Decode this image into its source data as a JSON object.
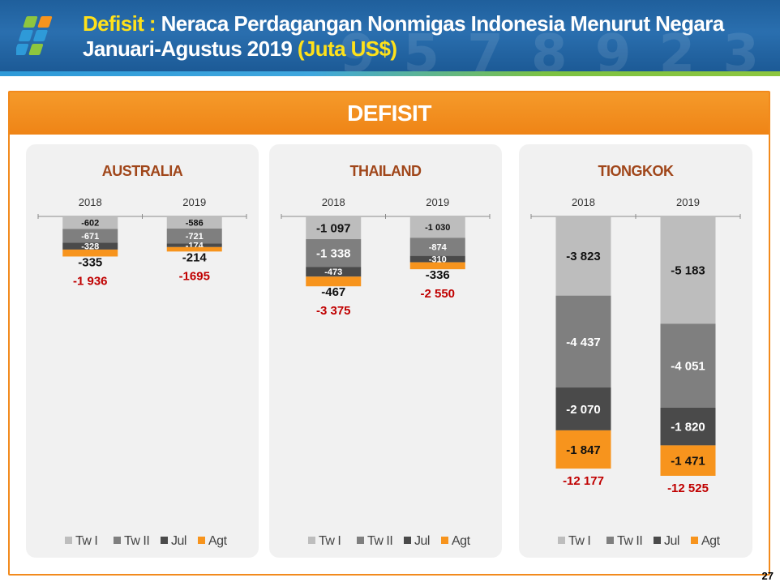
{
  "header": {
    "title_highlight": "Defisit :",
    "title_rest": " Neraca Perdagangan Nonmigas Indonesia Menurut Negara",
    "title_line2": "Januari-Agustus 2019 ",
    "title_unit": "(Juta US$)"
  },
  "section_title": "DEFISIT",
  "page_number": "27",
  "colors": {
    "tw1": "#bdbdbd",
    "tw2": "#7f7f7f",
    "jul": "#4a4a4a",
    "agt": "#f7941d",
    "total_label": "#c00000",
    "country_label": "#a0461a",
    "frame": "#f28a1c"
  },
  "legend": [
    "Tw I",
    "Tw II",
    "Jul",
    "Agt"
  ],
  "chart_data": [
    {
      "type": "bar",
      "stacked": true,
      "orientation": "negative-downward",
      "title": "AUSTRALIA",
      "categories": [
        "2018",
        "2019"
      ],
      "series": [
        {
          "name": "Tw I",
          "values": [
            -602,
            -586
          ],
          "labels": [
            "-602",
            "-586"
          ]
        },
        {
          "name": "Tw II",
          "values": [
            -671,
            -721
          ],
          "labels": [
            "-671",
            "-721"
          ]
        },
        {
          "name": "Jul",
          "values": [
            -328,
            -174
          ],
          "labels": [
            "-328",
            "-174"
          ]
        },
        {
          "name": "Agt",
          "values": [
            -335,
            -214
          ],
          "labels": [
            "-335",
            "-214"
          ]
        }
      ],
      "totals": [
        -1936,
        -1695
      ],
      "total_labels": [
        "-1 936",
        "-1695"
      ],
      "ylim": [
        -12525,
        0
      ],
      "legend_position": "bottom"
    },
    {
      "type": "bar",
      "stacked": true,
      "orientation": "negative-downward",
      "title": "THAILAND",
      "categories": [
        "2018",
        "2019"
      ],
      "series": [
        {
          "name": "Tw I",
          "values": [
            -1097,
            -1030
          ],
          "labels": [
            "-1 097",
            "-1 030"
          ]
        },
        {
          "name": "Tw II",
          "values": [
            -1338,
            -874
          ],
          "labels": [
            "-1 338",
            "-874"
          ]
        },
        {
          "name": "Jul",
          "values": [
            -473,
            -310
          ],
          "labels": [
            "-473",
            "-310"
          ]
        },
        {
          "name": "Agt",
          "values": [
            -467,
            -336
          ],
          "labels": [
            "-467",
            "-336"
          ]
        }
      ],
      "totals": [
        -3375,
        -2550
      ],
      "total_labels": [
        "-3 375",
        "-2 550"
      ],
      "ylim": [
        -12525,
        0
      ],
      "legend_position": "bottom"
    },
    {
      "type": "bar",
      "stacked": true,
      "orientation": "negative-downward",
      "title": "TIONGKOK",
      "categories": [
        "2018",
        "2019"
      ],
      "series": [
        {
          "name": "Tw I",
          "values": [
            -3823,
            -5183
          ],
          "labels": [
            "-3 823",
            "-5 183"
          ]
        },
        {
          "name": "Tw II",
          "values": [
            -4437,
            -4051
          ],
          "labels": [
            "-4 437",
            "-4 051"
          ]
        },
        {
          "name": "Jul",
          "values": [
            -2070,
            -1820
          ],
          "labels": [
            "-2 070",
            "-1 820"
          ]
        },
        {
          "name": "Agt",
          "values": [
            -1847,
            -1471
          ],
          "labels": [
            "-1 847",
            "-1 471"
          ]
        }
      ],
      "totals": [
        -12177,
        -12525
      ],
      "total_labels": [
        "-12 177",
        "-12 525"
      ],
      "ylim": [
        -12525,
        0
      ],
      "legend_position": "bottom"
    }
  ]
}
